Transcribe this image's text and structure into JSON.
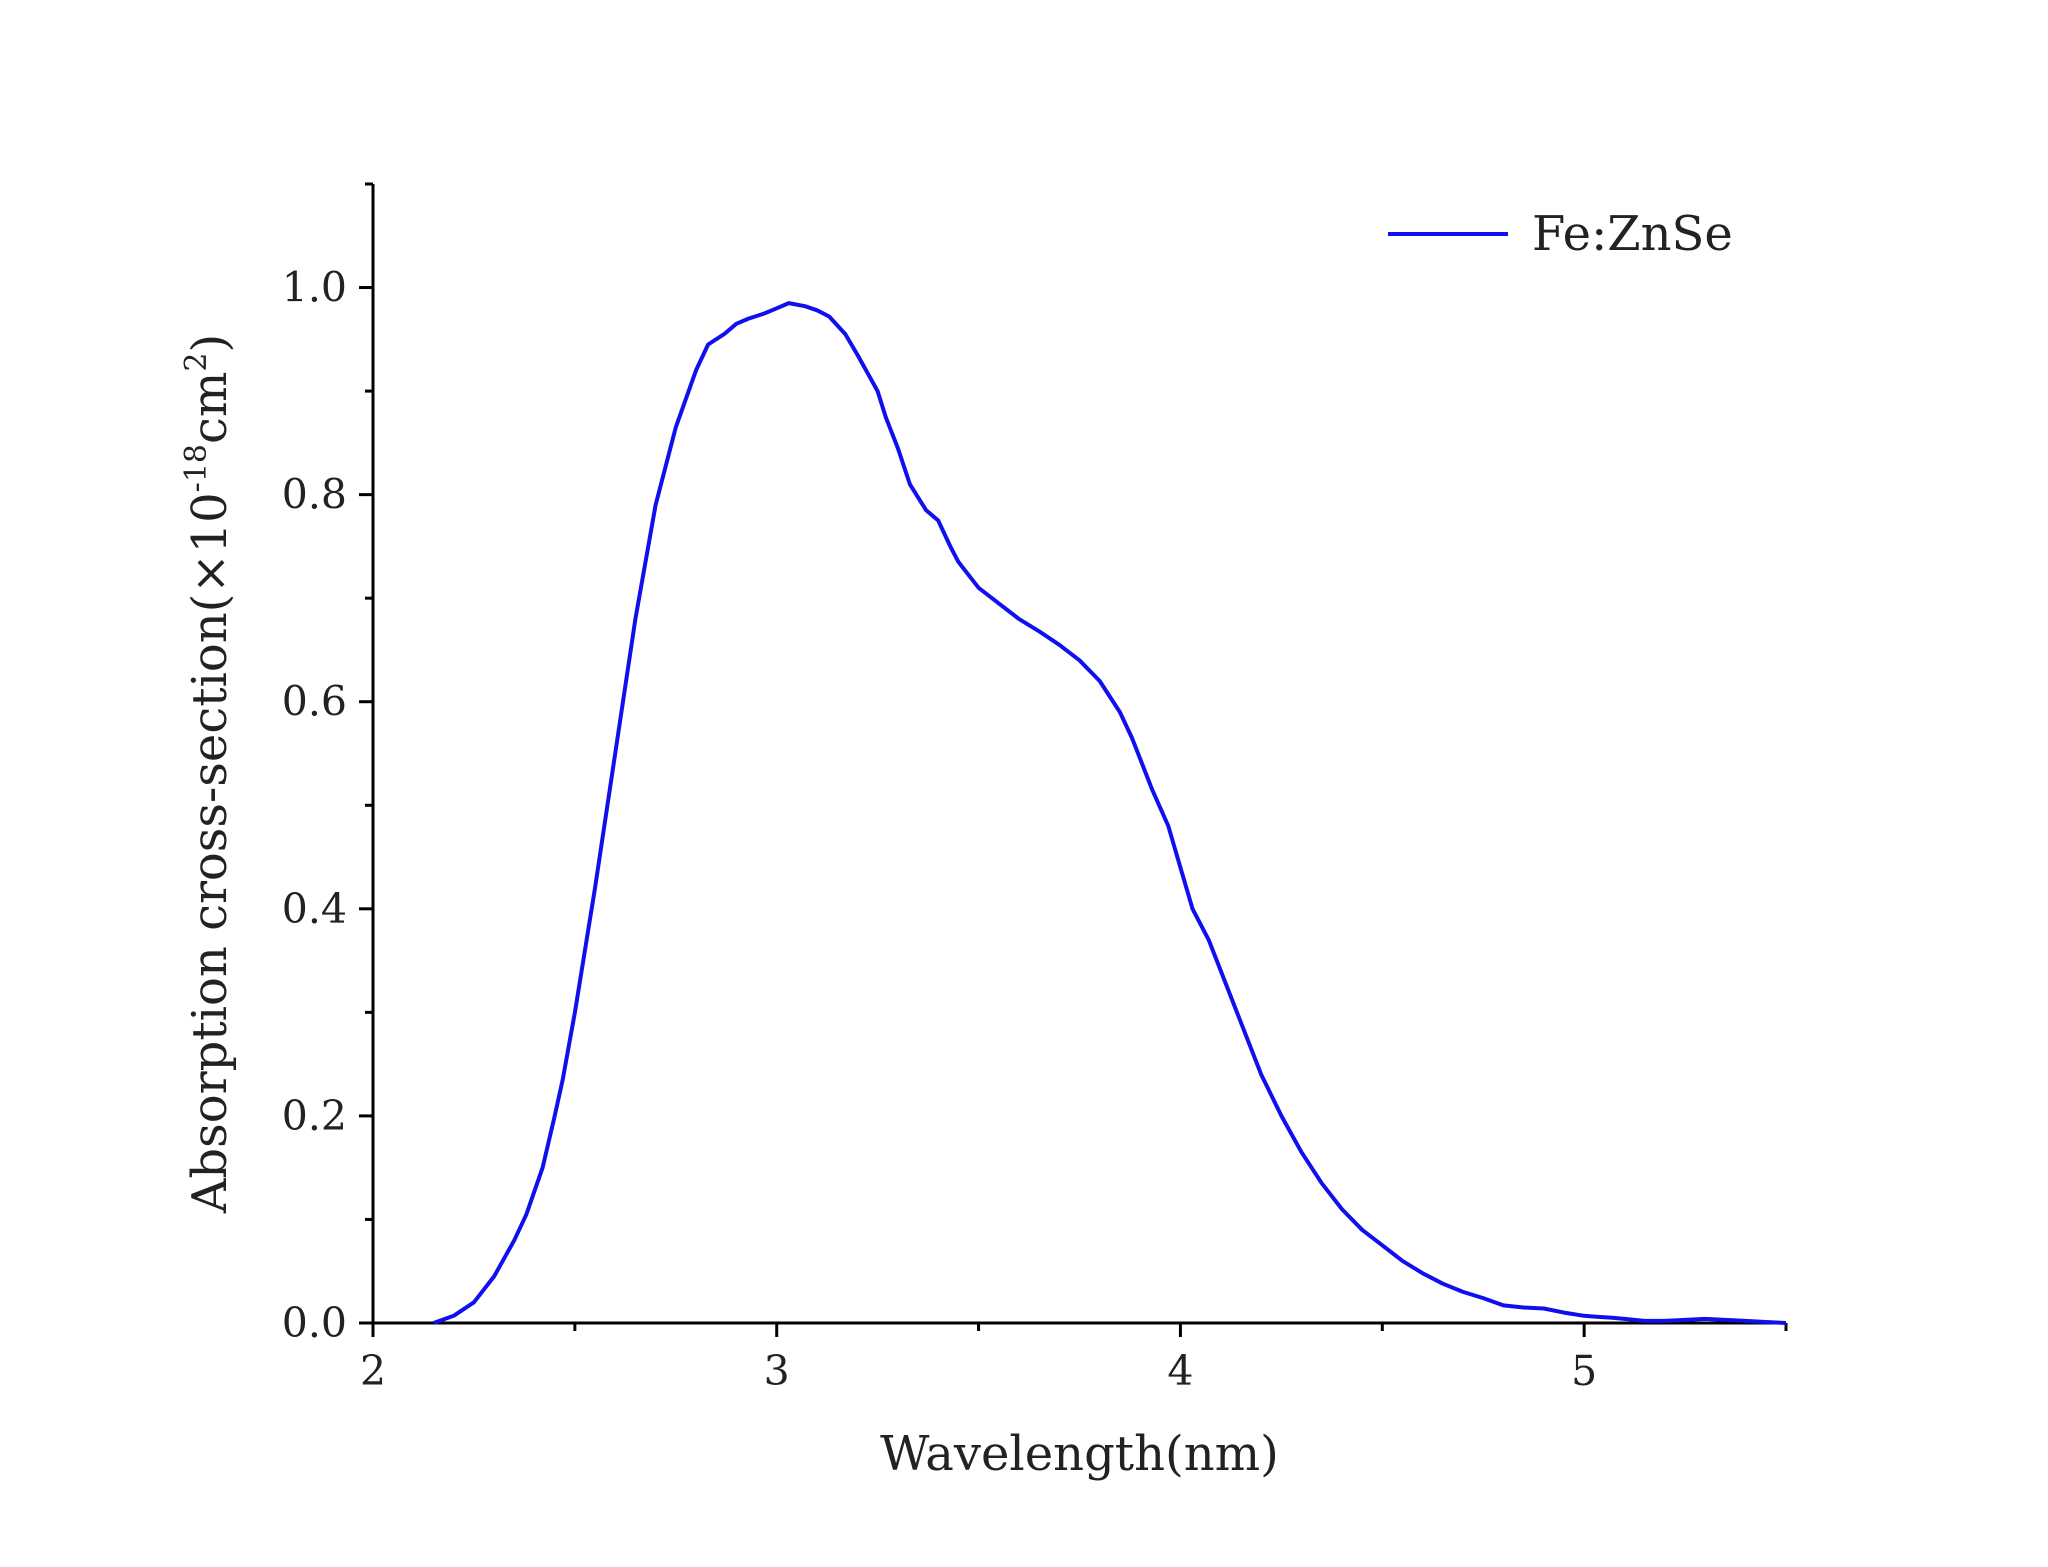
{
  "chart_data": {
    "type": "line",
    "title": "",
    "xlabel": "Wavelength(nm)",
    "ylabel_parts": [
      "Absorption cross-section(×10",
      "-18",
      "cm",
      "2",
      ")"
    ],
    "xlim": [
      2,
      5.5
    ],
    "ylim": [
      0,
      1.1
    ],
    "xticks": [
      2,
      3,
      4,
      5
    ],
    "xtick_labels": [
      "2",
      "3",
      "4",
      "5"
    ],
    "yticks": [
      0,
      0.2,
      0.4,
      0.6,
      0.8,
      1.0
    ],
    "ytick_labels": [
      "0.0",
      "0.2",
      "0.4",
      "0.6",
      "0.8",
      "1.0"
    ],
    "grid": false,
    "legend_position": "top-right",
    "series": [
      {
        "name": "Fe:ZnSe",
        "color": "#1010EE",
        "x": [
          2.15,
          2.2,
          2.25,
          2.3,
          2.35,
          2.38,
          2.42,
          2.45,
          2.47,
          2.5,
          2.55,
          2.6,
          2.65,
          2.7,
          2.75,
          2.8,
          2.83,
          2.87,
          2.9,
          2.93,
          2.97,
          3.0,
          3.03,
          3.07,
          3.1,
          3.13,
          3.17,
          3.2,
          3.25,
          3.27,
          3.3,
          3.33,
          3.37,
          3.4,
          3.43,
          3.45,
          3.47,
          3.5,
          3.55,
          3.6,
          3.65,
          3.7,
          3.75,
          3.8,
          3.85,
          3.88,
          3.9,
          3.93,
          3.97,
          4.0,
          4.03,
          4.07,
          4.1,
          4.15,
          4.2,
          4.25,
          4.3,
          4.35,
          4.4,
          4.45,
          4.5,
          4.55,
          4.6,
          4.65,
          4.7,
          4.75,
          4.8,
          4.85,
          4.9,
          4.95,
          5.0,
          5.03,
          5.07,
          5.1,
          5.15,
          5.2,
          5.25,
          5.3,
          5.35,
          5.4,
          5.45,
          5.5
        ],
        "values": [
          0.0,
          0.007,
          0.02,
          0.045,
          0.08,
          0.105,
          0.15,
          0.2,
          0.235,
          0.3,
          0.42,
          0.55,
          0.68,
          0.79,
          0.865,
          0.92,
          0.945,
          0.955,
          0.965,
          0.97,
          0.975,
          0.98,
          0.985,
          0.982,
          0.978,
          0.972,
          0.955,
          0.935,
          0.9,
          0.875,
          0.845,
          0.81,
          0.785,
          0.775,
          0.75,
          0.735,
          0.725,
          0.71,
          0.695,
          0.68,
          0.668,
          0.655,
          0.64,
          0.62,
          0.59,
          0.565,
          0.545,
          0.515,
          0.48,
          0.44,
          0.4,
          0.37,
          0.34,
          0.29,
          0.24,
          0.2,
          0.165,
          0.135,
          0.11,
          0.09,
          0.075,
          0.06,
          0.048,
          0.038,
          0.03,
          0.024,
          0.017,
          0.015,
          0.014,
          0.01,
          0.007,
          0.006,
          0.005,
          0.004,
          0.002,
          0.002,
          0.003,
          0.004,
          0.003,
          0.002,
          0.001,
          0.0
        ]
      }
    ]
  }
}
